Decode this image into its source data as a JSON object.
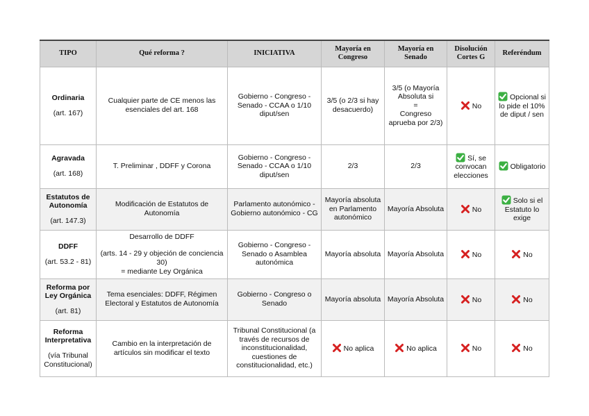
{
  "table": {
    "header": [
      "TIPO",
      "Qué reforma ?",
      "INICIATIVA",
      "Mayoría en Congreso",
      "Mayoría en Senado",
      "Disolución Cortes G",
      "Referéndum"
    ],
    "rows": [
      {
        "tipo": "Ordinaria",
        "ref": "(art. 167)",
        "cells": [
          "Cualquier parte de CE menos las esenciales del art. 168",
          "Gobierno - Congreso - Senado -  CCAA o 1/10 diput/sen",
          "3/5 (o 2/3 si hay desacuerdo)",
          [
            "3/5 (o Mayoría Absoluta si",
            "=",
            "Congreso aprueba por 2/3)"
          ],
          "No",
          "Opcional si lo pide el 10% de diput / sen"
        ]
      },
      {
        "tipo": "Agravada",
        "ref": "(art. 168)",
        "cells": [
          "T. Preliminar , DDFF y Corona",
          "Gobierno - Congreso - Senado -  CCAA o 1/10 diput/sen",
          "2/3",
          "2/3",
          "Sí, se convocan elecciones",
          "Obligatorio"
        ]
      },
      {
        "tipo": "Estatutos de Autonomía",
        "ref": "(art. 147.3)",
        "cells": [
          "Modificación de Estatutos de Autonomía",
          "Parlamento autonómico - Gobierno autonómico - CG",
          "Mayoría absoluta en Parlamento autonómico",
          "Mayoría Absoluta",
          "No",
          "Solo si el Estatuto lo exige"
        ]
      },
      {
        "tipo": "DDFF",
        "ref": "(art. 53.2 - 81)",
        "cells": [
          [
            "Desarrollo de DDFF",
            "",
            "(arts. 14 - 29 y objeción de conciencia 30)",
            "=    mediante Ley Orgánica"
          ],
          "Gobierno - Congreso - Senado o Asamblea autonómica",
          "Mayoría absoluta",
          "Mayoría Absoluta",
          "No",
          "No"
        ]
      },
      {
        "tipo": "Reforma por Ley Orgánica",
        "ref": "(art. 81)",
        "cells": [
          "Tema esenciales: DDFF, Régimen Electoral y Estatutos de Autonomía",
          "Gobierno - Congreso o Senado",
          "Mayoría absoluta",
          "Mayoría Absoluta",
          "No",
          "No"
        ]
      },
      {
        "tipo": "Reforma Interpretativa",
        "ref": "(vía Tribunal Constitucional)",
        "cells": [
          "Cambio en la interpretación de artículos sin modificar el texto",
          "Tribunal Constitucional (a través de recursos de inconstitucionalidad, cuestiones de constitucionalidad, etc.)",
          "No aplica",
          "No aplica",
          "No",
          "No"
        ]
      }
    ]
  }
}
